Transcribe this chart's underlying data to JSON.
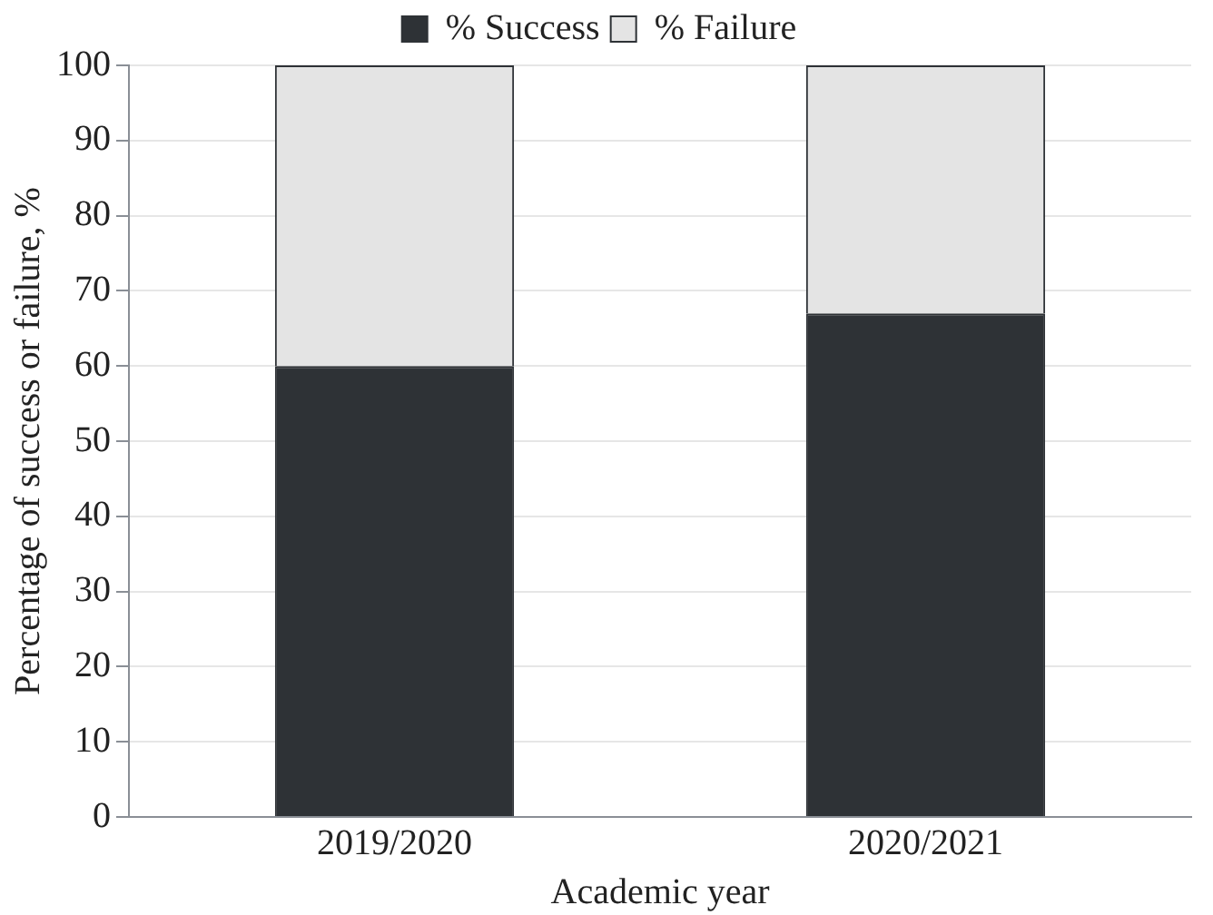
{
  "chart_data": {
    "type": "bar",
    "stacked": true,
    "xlabel": "Academic year",
    "ylabel": "Percentage of success or failure, %",
    "categories": [
      "2019/2020",
      "2020/2021"
    ],
    "series": [
      {
        "name": "% Success",
        "color": "#2e3236",
        "values": [
          60,
          67
        ]
      },
      {
        "name": "% Failure",
        "color": "#e4e4e4",
        "values": [
          40,
          33
        ]
      }
    ],
    "ylim": [
      0,
      100
    ],
    "yticks": [
      0,
      10,
      20,
      30,
      40,
      50,
      60,
      70,
      80,
      90,
      100
    ],
    "grid": "y",
    "legend": "top"
  }
}
